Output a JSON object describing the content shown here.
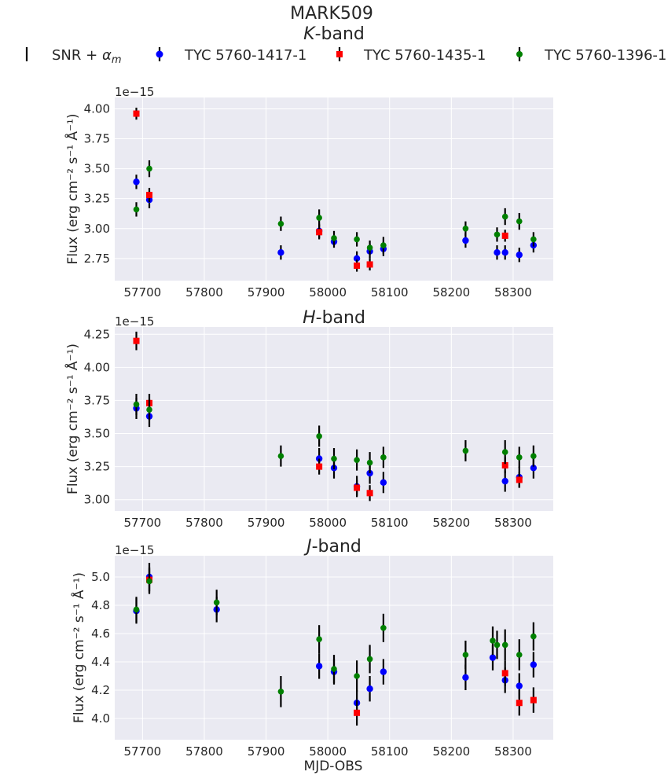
{
  "figure": {
    "title": "MARK509",
    "xlabel": "MJD-OBS",
    "legend": {
      "placement": "top",
      "entries": [
        {
          "label_pre": "SNR + ",
          "label_sym": "α",
          "label_sub": "m",
          "color": "#000000",
          "marker": "errorbar"
        },
        {
          "label": "TYC 5760-1417-1",
          "color": "#0000ff",
          "marker": "circle"
        },
        {
          "label": "TYC 5760-1435-1",
          "color": "#ff0000",
          "marker": "square"
        },
        {
          "label": "TYC 5760-1396-1",
          "color": "#008000",
          "marker": "circle"
        }
      ]
    },
    "colors": {
      "panel_bg": "#eaeaf2",
      "grid": "#ffffff",
      "errorbar": "#000000"
    }
  },
  "chart_data": [
    {
      "type": "scatter",
      "title_italic": "K",
      "title_rest": "-band",
      "ylabel": "Flux (erg cm⁻² s⁻¹ Å⁻¹)",
      "y_offset_label": "1e−15",
      "xlim": [
        57655,
        58365
      ],
      "ylim": [
        2.565,
        4.095
      ],
      "xticks": [
        57700,
        57800,
        57900,
        58000,
        58100,
        58200,
        58300
      ],
      "yticks": [
        2.75,
        3.0,
        3.25,
        3.5,
        3.75,
        4.0
      ],
      "grid": true,
      "series": [
        {
          "name": "TYC 5760-1417-1",
          "marker": "circle",
          "color": "#0000ff",
          "x": [
            57690,
            57711,
            57924,
            57986,
            58010,
            58047,
            58068,
            58090,
            58223,
            58274,
            58287,
            58310,
            58333
          ],
          "y": [
            3.39,
            3.24,
            2.8,
            2.98,
            2.89,
            2.75,
            2.81,
            2.83,
            2.9,
            2.8,
            2.8,
            2.78,
            2.86
          ],
          "err": [
            0.06,
            0.07,
            0.06,
            0.06,
            0.05,
            0.06,
            0.06,
            0.06,
            0.06,
            0.06,
            0.06,
            0.06,
            0.06
          ]
        },
        {
          "name": "TYC 5760-1435-1",
          "marker": "square",
          "color": "#ff0000",
          "x": [
            57690,
            57711,
            57986,
            58047,
            58068,
            58287
          ],
          "y": [
            3.96,
            3.28,
            2.97,
            2.69,
            2.7,
            2.94
          ],
          "err": [
            0.05,
            0.06,
            0.06,
            0.05,
            0.05,
            0.05
          ]
        },
        {
          "name": "TYC 5760-1396-1",
          "marker": "circle",
          "color": "#008000",
          "x": [
            57690,
            57711,
            57924,
            57986,
            58010,
            58047,
            58068,
            58090,
            58223,
            58274,
            58287,
            58310,
            58333
          ],
          "y": [
            3.16,
            3.5,
            3.04,
            3.09,
            2.92,
            2.91,
            2.84,
            2.86,
            3.0,
            2.95,
            3.1,
            3.06,
            2.91
          ],
          "err": [
            0.06,
            0.07,
            0.06,
            0.07,
            0.06,
            0.06,
            0.06,
            0.07,
            0.06,
            0.06,
            0.07,
            0.07,
            0.06
          ]
        }
      ]
    },
    {
      "type": "scatter",
      "title_italic": "H",
      "title_rest": "-band",
      "ylabel": "Flux (erg cm⁻² s⁻¹ Å⁻¹)",
      "y_offset_label": "1e−15",
      "xlim": [
        57655,
        58365
      ],
      "ylim": [
        2.915,
        4.305
      ],
      "xticks": [
        57700,
        57800,
        57900,
        58000,
        58100,
        58200,
        58300
      ],
      "yticks": [
        3.0,
        3.25,
        3.5,
        3.75,
        4.0,
        4.25
      ],
      "grid": true,
      "series": [
        {
          "name": "TYC 5760-1417-1",
          "marker": "circle",
          "color": "#0000ff",
          "x": [
            57690,
            57711,
            57986,
            58010,
            58047,
            58068,
            58090,
            58287,
            58310,
            58333
          ],
          "y": [
            3.69,
            3.63,
            3.31,
            3.24,
            3.1,
            3.2,
            3.13,
            3.14,
            3.17,
            3.24
          ],
          "err": [
            0.08,
            0.08,
            0.08,
            0.08,
            0.08,
            0.08,
            0.08,
            0.08,
            0.08,
            0.08
          ]
        },
        {
          "name": "TYC 5760-1435-1",
          "marker": "square",
          "color": "#ff0000",
          "x": [
            57690,
            57711,
            57986,
            58047,
            58068,
            58287,
            58310
          ],
          "y": [
            4.2,
            3.73,
            3.25,
            3.09,
            3.05,
            3.26,
            3.15
          ],
          "err": [
            0.07,
            0.07,
            0.06,
            0.06,
            0.06,
            0.06,
            0.06
          ]
        },
        {
          "name": "TYC 5760-1396-1",
          "marker": "circle",
          "color": "#008000",
          "x": [
            57690,
            57711,
            57924,
            57986,
            58010,
            58047,
            58068,
            58090,
            58223,
            58287,
            58310,
            58333
          ],
          "y": [
            3.72,
            3.68,
            3.33,
            3.48,
            3.31,
            3.3,
            3.28,
            3.32,
            3.37,
            3.36,
            3.32,
            3.33
          ],
          "err": [
            0.08,
            0.08,
            0.08,
            0.08,
            0.08,
            0.08,
            0.08,
            0.08,
            0.08,
            0.09,
            0.08,
            0.08
          ]
        }
      ]
    },
    {
      "type": "scatter",
      "title_italic": "J",
      "title_rest": "-band",
      "ylabel": "Flux (erg cm⁻² s⁻¹ Å⁻¹)",
      "y_offset_label": "1e−15",
      "xlim": [
        57655,
        58365
      ],
      "ylim": [
        3.85,
        5.15
      ],
      "xticks": [
        57700,
        57800,
        57900,
        58000,
        58100,
        58200,
        58300
      ],
      "yticks": [
        4.0,
        4.2,
        4.4,
        4.6,
        4.8,
        5.0
      ],
      "grid": true,
      "series": [
        {
          "name": "TYC 5760-1417-1",
          "marker": "circle",
          "color": "#0000ff",
          "x": [
            57690,
            57711,
            57820,
            57986,
            58010,
            58047,
            58068,
            58090,
            58223,
            58267,
            58287,
            58310,
            58333
          ],
          "y": [
            4.76,
            5.0,
            4.77,
            4.37,
            4.33,
            4.11,
            4.21,
            4.33,
            4.29,
            4.43,
            4.27,
            4.23,
            4.38
          ],
          "err": [
            0.09,
            0.1,
            0.09,
            0.09,
            0.09,
            0.09,
            0.09,
            0.09,
            0.09,
            0.09,
            0.09,
            0.09,
            0.09
          ]
        },
        {
          "name": "TYC 5760-1435-1",
          "marker": "square",
          "color": "#ff0000",
          "x": [
            57711,
            58047,
            58287,
            58310,
            58333
          ],
          "y": [
            4.98,
            4.04,
            4.32,
            4.11,
            4.13
          ],
          "err": [
            0.09,
            0.09,
            0.09,
            0.09,
            0.09
          ]
        },
        {
          "name": "TYC 5760-1396-1",
          "marker": "circle",
          "color": "#008000",
          "x": [
            57690,
            57711,
            57820,
            57924,
            57986,
            58010,
            58047,
            58068,
            58090,
            58223,
            58267,
            58274,
            58287,
            58310,
            58333
          ],
          "y": [
            4.77,
            4.97,
            4.82,
            4.19,
            4.56,
            4.35,
            4.3,
            4.42,
            4.64,
            4.45,
            4.55,
            4.52,
            4.52,
            4.45,
            4.58
          ],
          "err": [
            0.09,
            0.09,
            0.09,
            0.11,
            0.1,
            0.1,
            0.11,
            0.1,
            0.1,
            0.1,
            0.1,
            0.1,
            0.11,
            0.11,
            0.1
          ]
        }
      ]
    }
  ]
}
